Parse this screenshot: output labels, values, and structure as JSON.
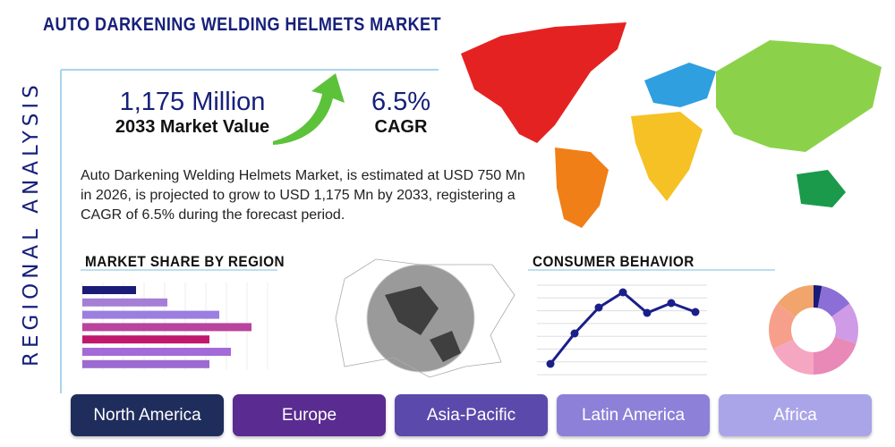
{
  "header": {
    "title": "AUTO DARKENING WELDING HELMETS MARKET",
    "side_label": "REGIONAL ANALYSIS"
  },
  "stats": [
    {
      "value": "1,175 Million",
      "label": "2033 Market Value"
    },
    {
      "value": "6.5%",
      "label": "CAGR"
    }
  ],
  "description": "Auto Darkening Welding Helmets Market, is estimated at USD 750 Mn in 2026, is projected to grow to USD 1,175 Mn by 2033, registering a CAGR of 6.5% during the forecast period.",
  "market_share": {
    "title": "MARKET SHARE BY REGION",
    "values": [
      60,
      95,
      153,
      189,
      142,
      166,
      142
    ],
    "colors": [
      "#1b1b78",
      "#a57fd6",
      "#9b7ee0",
      "#b9449e",
      "#c0186c",
      "#a46ad8",
      "#9c6ad0"
    ]
  },
  "consumer_behavior": {
    "title": "CONSUMER BEHAVIOR",
    "values": [
      13,
      47,
      76,
      93,
      70,
      81,
      71
    ],
    "color": "#1a1f8a"
  },
  "donut": {
    "values": [
      3,
      12,
      15,
      20,
      18,
      17,
      15
    ],
    "colors": [
      "#1b1b78",
      "#8c6fd6",
      "#cf9ae6",
      "#e889b8",
      "#f5a7c2",
      "#f6a08c",
      "#f1a56d"
    ]
  },
  "regions": [
    {
      "label": "North America",
      "color": "#1f2d5c"
    },
    {
      "label": "Europe",
      "color": "#5a2b90"
    },
    {
      "label": "Asia-Pacific",
      "color": "#5b4aab"
    },
    {
      "label": "Latin America",
      "color": "#8d80d8"
    },
    {
      "label": "Africa",
      "color": "#aaa5e8"
    }
  ]
}
